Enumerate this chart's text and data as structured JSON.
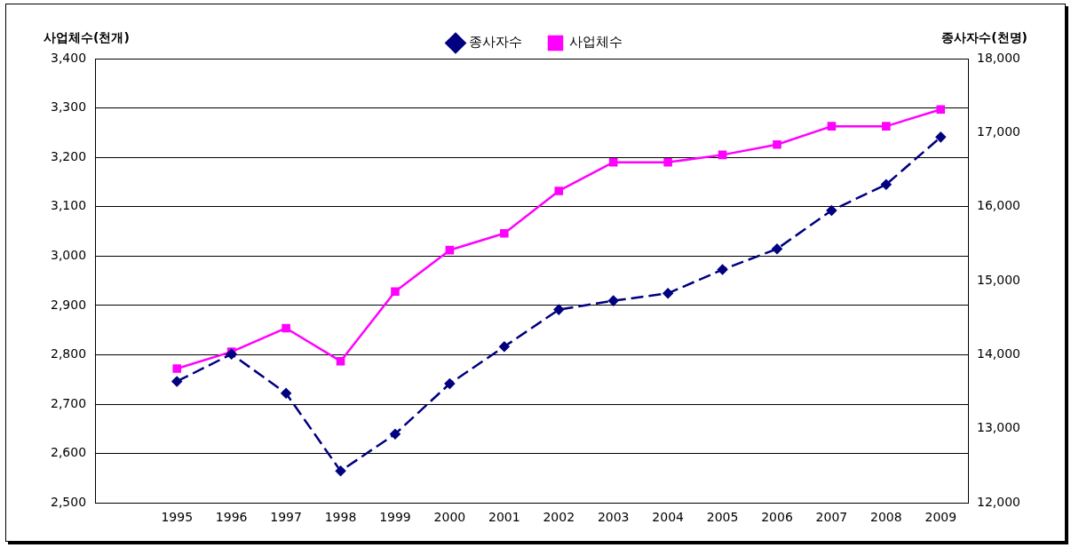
{
  "chart_data": {
    "type": "line",
    "ylabel": "사업체수(천개)",
    "y2label": "종사자수(천명)",
    "categories": [
      null,
      "1995",
      "1996",
      "1997",
      "1998",
      "1999",
      "2000",
      "2001",
      "2002",
      "2003",
      "2004",
      "2005",
      "2006",
      "2007",
      "2008",
      "2009"
    ],
    "series": [
      {
        "name": "사업체수",
        "color": "#ff00ff",
        "marker": "square",
        "line_style": "solid",
        "values": [
          null,
          2772,
          2806,
          2854,
          2787,
          2928,
          3012,
          3046,
          3132,
          3190,
          3190,
          3205,
          3226,
          3263,
          3263,
          3297
        ]
      },
      {
        "name": "종사자수",
        "color": "#000080",
        "marker": "diamond",
        "line_style": "dashed",
        "axis": "y2",
        "values": [
          null,
          13640,
          14010,
          13480,
          12430,
          12930,
          13610,
          14110,
          14610,
          14730,
          14830,
          15150,
          15430,
          15950,
          16300,
          16940
        ]
      }
    ],
    "ylim": [
      2500,
      3400
    ],
    "yticks": [
      {
        "value": 2500,
        "label": "2,500"
      },
      {
        "value": 2600,
        "label": "2,600"
      },
      {
        "value": 2700,
        "label": "2,700"
      },
      {
        "value": 2800,
        "label": "2,800"
      },
      {
        "value": 2900,
        "label": "2,900"
      },
      {
        "value": 3000,
        "label": "3,000"
      },
      {
        "value": 3100,
        "label": "3,100"
      },
      {
        "value": 3200,
        "label": "3,200"
      },
      {
        "value": 3300,
        "label": "3,300"
      },
      {
        "value": 3400,
        "label": "3,400"
      }
    ],
    "y2lim": [
      12000,
      18000
    ],
    "y2ticks": [
      {
        "value": 12000,
        "label": "12,000"
      },
      {
        "value": 13000,
        "label": "13,000"
      },
      {
        "value": 14000,
        "label": "14,000"
      },
      {
        "value": 15000,
        "label": "15,000"
      },
      {
        "value": 16000,
        "label": "16,000"
      },
      {
        "value": 17000,
        "label": "17,000"
      },
      {
        "value": 18000,
        "label": "18,000"
      }
    ],
    "grid": "y",
    "legend": "top"
  }
}
